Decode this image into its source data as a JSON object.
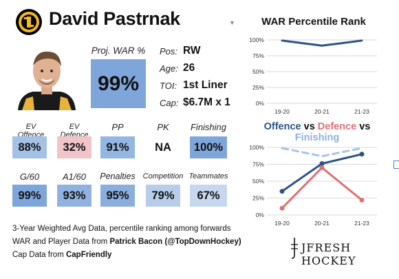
{
  "player": {
    "name": "David Pastrnak"
  },
  "proj_war": {
    "label": "Proj. WAR %",
    "value": "99%"
  },
  "info": [
    {
      "label": "Pos:",
      "value": "RW"
    },
    {
      "label": "Age:",
      "value": "26"
    },
    {
      "label": "TOI:",
      "value": "1st Liner"
    },
    {
      "label": "Cap:",
      "value": "$6.7M x 1"
    }
  ],
  "stats_row1": [
    {
      "label": "EV Offence",
      "value": "88%",
      "color": "#a4c1e6"
    },
    {
      "label": "EV Defence",
      "value": "32%",
      "color": "#f1c4c8"
    },
    {
      "label": "PP",
      "value": "91%",
      "color": "#94b6e2"
    },
    {
      "label": "PK",
      "value": "NA",
      "color": "#ffffff"
    },
    {
      "label": "Finishing",
      "value": "100%",
      "color": "#7fa6da"
    }
  ],
  "stats_row2": [
    {
      "label": "G/60",
      "value": "99%",
      "color": "#7fa6da"
    },
    {
      "label": "A1/60",
      "value": "93%",
      "color": "#90b2e0"
    },
    {
      "label": "Penalties",
      "value": "95%",
      "color": "#8aaede"
    },
    {
      "label": "Competition",
      "value": "79%",
      "color": "#b7cdea"
    },
    {
      "label": "Teammates",
      "value": "67%",
      "color": "#c7d7ee"
    }
  ],
  "notes": {
    "line1": "3-Year Weighted Avg Data, percentile ranking among forwards",
    "line2_prefix": "WAR and Player Data from ",
    "line2_bold": "Patrick Bacon (@TopDownHockey)",
    "line3_prefix": "Cap Data from ",
    "line3_bold": "CapFriendly"
  },
  "brand": "JFRESH HOCKEY",
  "chart_data": [
    {
      "type": "line",
      "title": "WAR Percentile Rank",
      "categories": [
        "19-20",
        "20-21",
        "21-23"
      ],
      "ylim": [
        0,
        100
      ],
      "yticks": [
        "0%",
        "25%",
        "50%",
        "75%",
        "100%"
      ],
      "series": [
        {
          "values": [
            99,
            91,
            99
          ],
          "color": "#2c5288",
          "dashed": false
        }
      ]
    },
    {
      "type": "line",
      "title_parts": [
        {
          "text": "Offence",
          "color": "#2c5288"
        },
        {
          "text": " vs ",
          "color": "#111111"
        },
        {
          "text": "Defence",
          "color": "#e07074"
        },
        {
          "text": " vs ",
          "color": "#111111"
        },
        {
          "text": "Finishing",
          "color": "#8fb0df"
        }
      ],
      "categories": [
        "19-20",
        "20-21",
        "21-23"
      ],
      "ylim": [
        0,
        100
      ],
      "yticks": [
        "0%",
        "25%",
        "50%",
        "75%",
        "100%"
      ],
      "series": [
        {
          "name": "Offence",
          "values": [
            35,
            76,
            90
          ],
          "color": "#2c5288",
          "dashed": false
        },
        {
          "name": "Defence",
          "values": [
            10,
            70,
            22
          ],
          "color": "#e07074",
          "dashed": false
        },
        {
          "name": "Finishing",
          "values": [
            99,
            87,
            99
          ],
          "color": "#a8c4e8",
          "dashed": true
        }
      ]
    }
  ]
}
